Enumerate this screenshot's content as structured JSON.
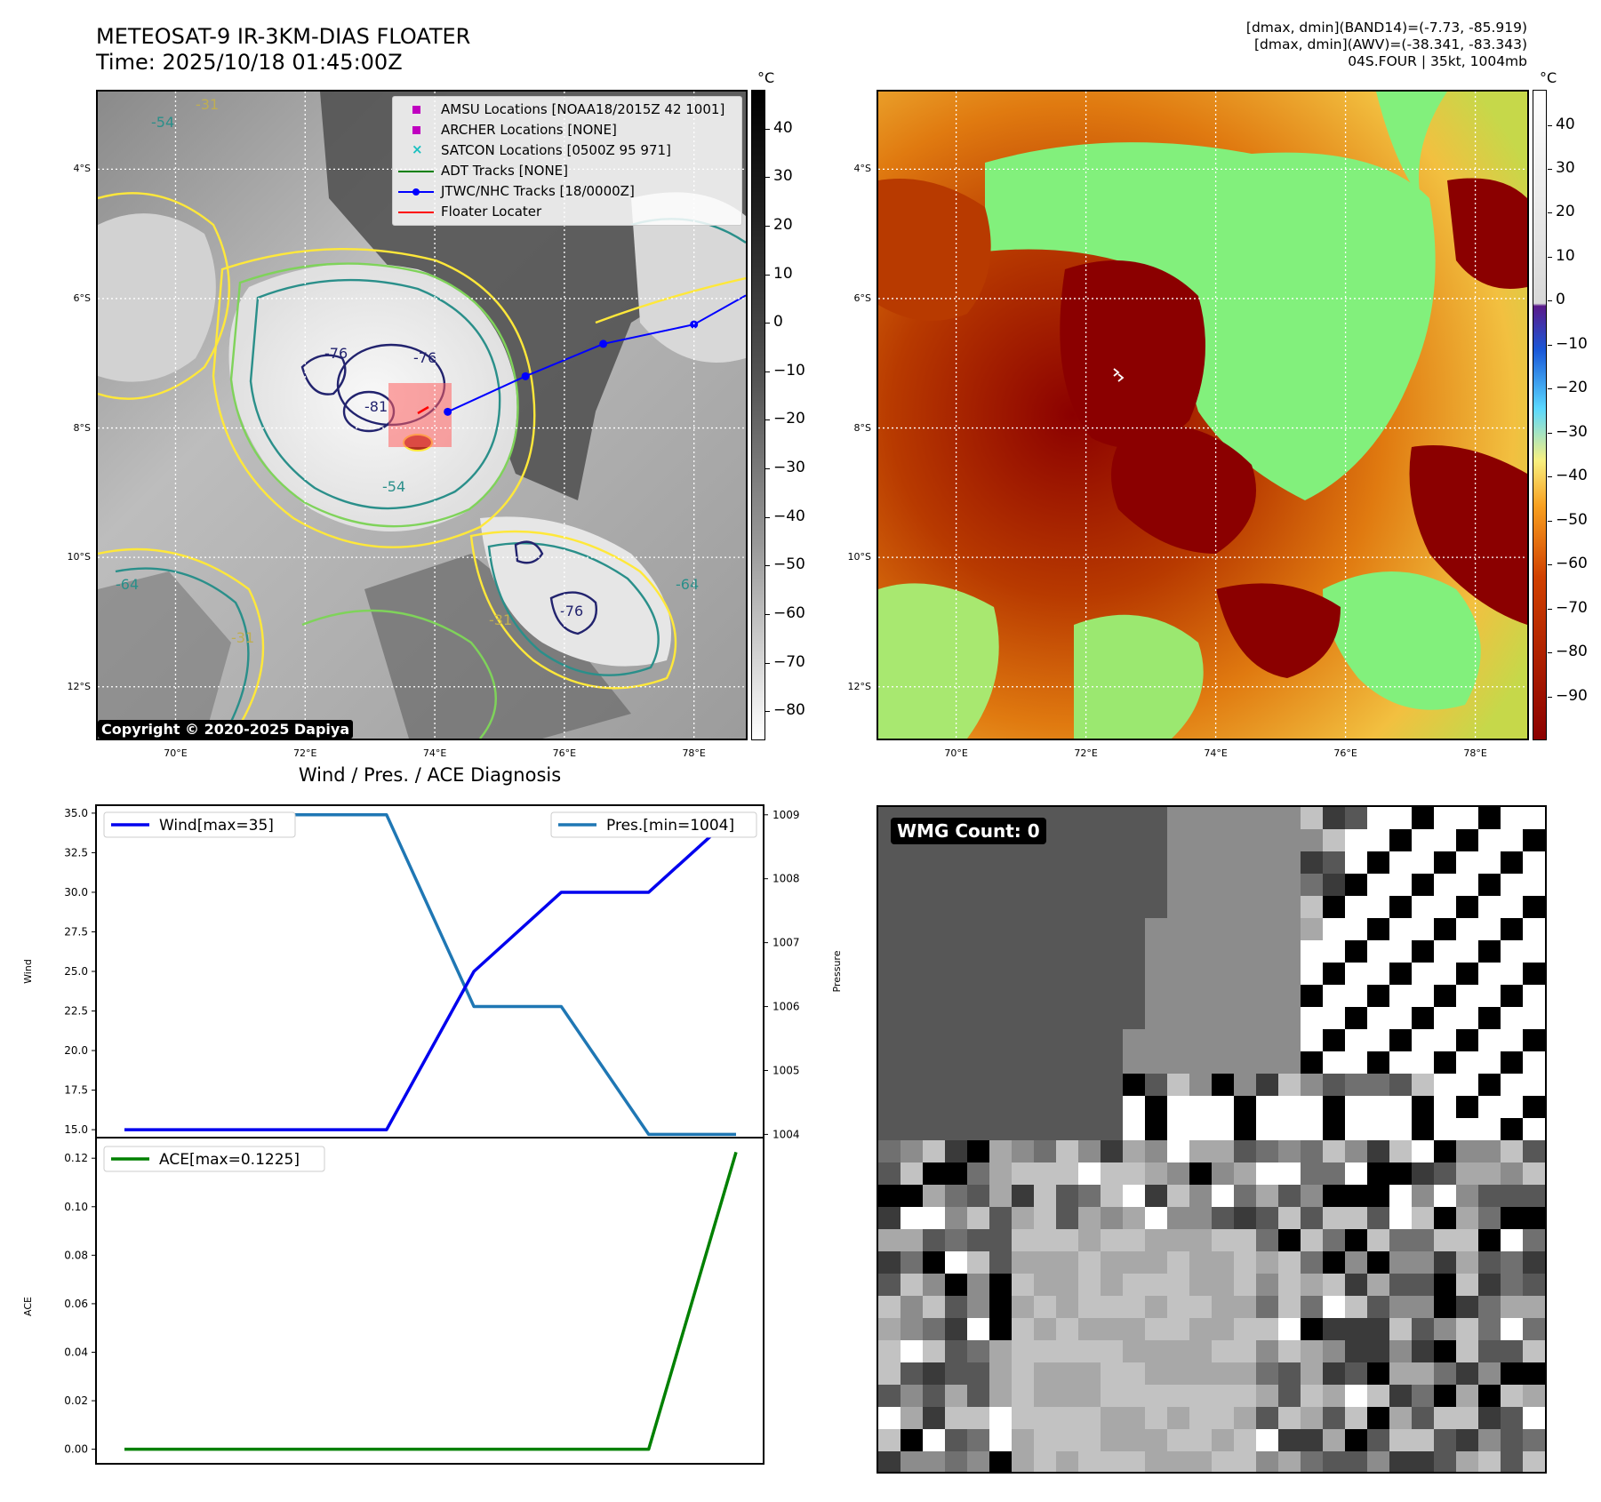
{
  "header": {
    "title_line1": "METEOSAT-9 IR-3KM-DIAS FLOATER",
    "title_line2": "Time: 2025/10/18 01:45:00Z",
    "info_line1": "[dmax, dmin](BAND14)=(-7.73, -85.919)",
    "info_line2": "[dmax, dmin](AWV)=(-38.341, -83.343)",
    "info_line3": "04S.FOUR | 35kt, 1004mb"
  },
  "map": {
    "lon_ticks": [
      "70°E",
      "72°E",
      "74°E",
      "76°E",
      "78°E"
    ],
    "lat_ticks": [
      "4°S",
      "6°S",
      "8°S",
      "10°S",
      "12°S"
    ],
    "lon_range": [
      68.8,
      78.8
    ],
    "lat_range": [
      -12.8,
      -2.8
    ],
    "contour_labels": [
      "-31",
      "-54",
      "-64",
      "-76",
      "-81"
    ],
    "legend": [
      {
        "label": "AMSU Locations [NOAA18/2015Z 42 1001]",
        "symbol": "square",
        "color": "#c000c0"
      },
      {
        "label": "ARCHER Locations [NONE]",
        "symbol": "square",
        "color": "#c000c0"
      },
      {
        "label": "SATCON Locations [0500Z 95 971]",
        "symbol": "x",
        "color": "#19c0c0"
      },
      {
        "label": "ADT Tracks [NONE]",
        "symbol": "line",
        "color": "#008000"
      },
      {
        "label": "JTWC/NHC Tracks [18/0000Z]",
        "symbol": "line-dot",
        "color": "#0000ff"
      },
      {
        "label": "Floater Locater",
        "symbol": "line",
        "color": "#ff0000"
      }
    ],
    "track_points": [
      [
        74.2,
        -7.75
      ],
      [
        75.4,
        -7.2
      ],
      [
        76.6,
        -6.7
      ],
      [
        78.0,
        -6.4
      ],
      [
        78.8,
        -5.95
      ]
    ],
    "floater_box": {
      "lon": [
        73.3,
        74.2
      ],
      "lat": [
        -8.35,
        -7.4
      ]
    },
    "copyright": "Copyright © 2020-2025 Dapiya"
  },
  "colorbar_left": {
    "unit": "°C",
    "ticks": [
      "40",
      "30",
      "20",
      "10",
      "0",
      "−10",
      "−20",
      "−30",
      "−40",
      "−50",
      "−60",
      "−70",
      "−80"
    ]
  },
  "colorbar_right": {
    "unit": "°C",
    "ticks": [
      "40",
      "30",
      "20",
      "10",
      "0",
      "−10",
      "−20",
      "−30",
      "−40",
      "−50",
      "−60",
      "−70",
      "−80",
      "−90"
    ]
  },
  "diag": {
    "title": "Wind / Pres. / ACE Diagnosis",
    "wind_axis_label": "Wind",
    "pres_axis_label": "Pressure",
    "ace_axis_label": "ACE",
    "wind_ticks": [
      "35.0",
      "32.5",
      "30.0",
      "27.5",
      "25.0",
      "22.5",
      "20.0",
      "17.5",
      "15.0"
    ],
    "pres_ticks": [
      "1009",
      "1008",
      "1007",
      "1006",
      "1005",
      "1004"
    ],
    "ace_ticks": [
      "0.12",
      "0.10",
      "0.08",
      "0.06",
      "0.04",
      "0.02",
      "0.00"
    ],
    "wind_legend": "Wind[max=35]",
    "pres_legend": "Pres.[min=1004]",
    "ace_legend": "ACE[max=0.1225]"
  },
  "chart_data": [
    {
      "type": "line",
      "x": [
        0,
        1,
        2,
        3,
        4,
        5,
        6,
        7
      ],
      "series": [
        {
          "name": "Wind[max=35]",
          "values": [
            15,
            15,
            15,
            15,
            25,
            30,
            30,
            35
          ],
          "color": "#0000ee"
        },
        {
          "name": "Pres.[min=1004]",
          "values": [
            1009,
            1009,
            1009,
            1009,
            1006,
            1006,
            1004,
            1004
          ],
          "color": "#1f77b4",
          "axis": "right"
        }
      ],
      "ylim": [
        14.5,
        35.5
      ],
      "ylim_right": [
        1003.95,
        1009.15
      ],
      "ylabel": "Wind",
      "ylabel_right": "Pressure",
      "legend": [
        "upper-left",
        "upper-right"
      ]
    },
    {
      "type": "line",
      "x": [
        0,
        1,
        2,
        3,
        4,
        5,
        6,
        7
      ],
      "series": [
        {
          "name": "ACE[max=0.1225]",
          "values": [
            0,
            0,
            0,
            0,
            0,
            0,
            0,
            0.1225
          ],
          "color": "#008000"
        }
      ],
      "ylim": [
        -0.006,
        0.1285
      ],
      "ylabel": "ACE",
      "legend": "upper-left"
    }
  ],
  "wmg": {
    "count_label": "WMG Count: 0"
  }
}
